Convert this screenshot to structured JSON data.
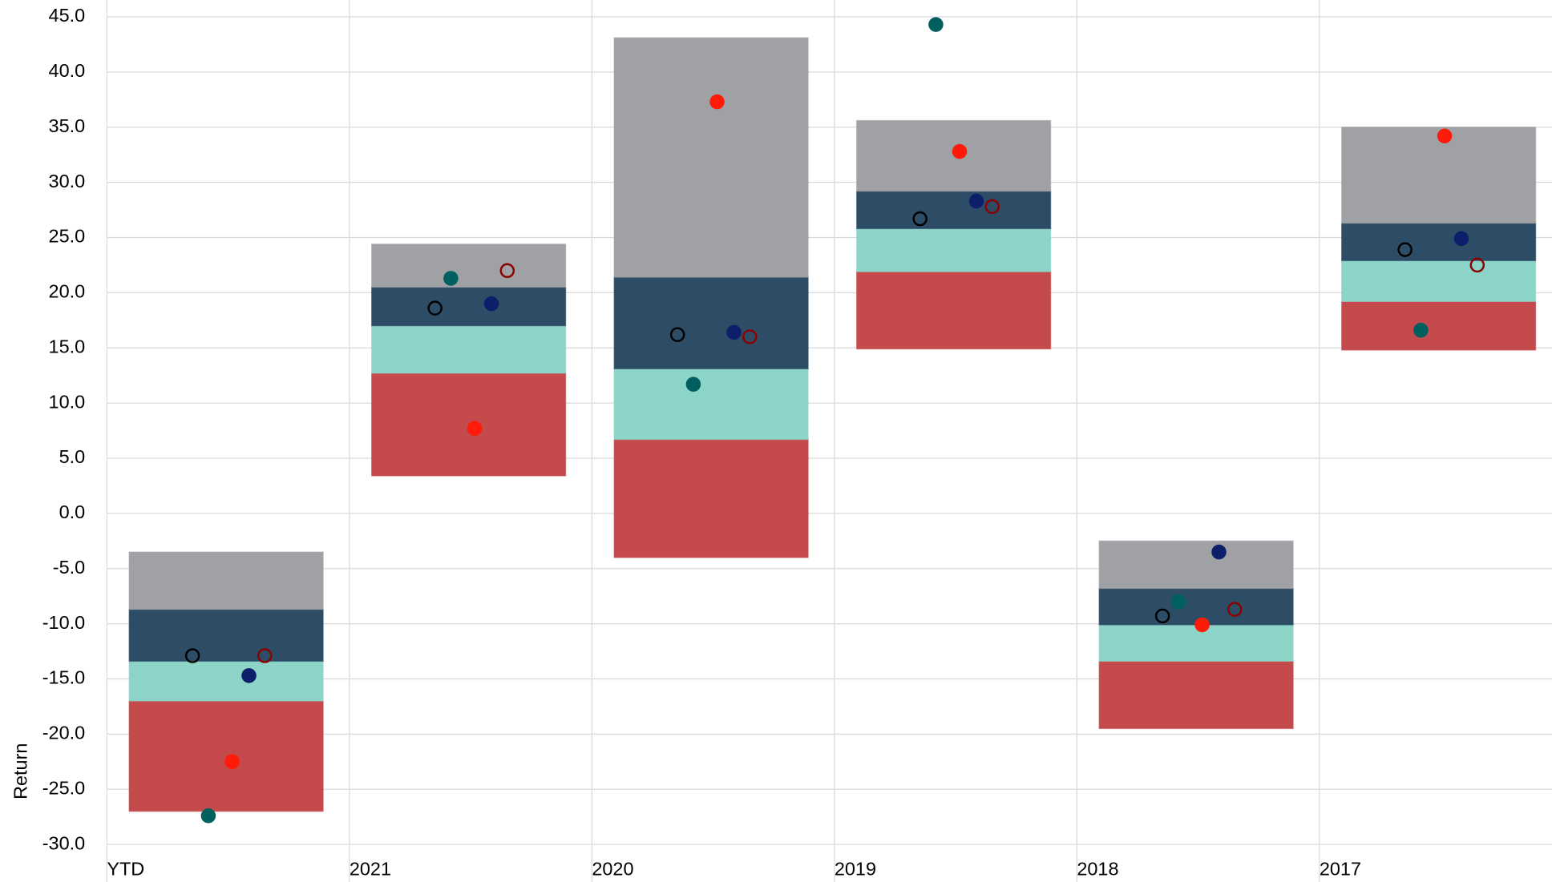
{
  "chart_data": {
    "type": "floating_bar",
    "y_label": "Return",
    "categories": [
      "YTD",
      "2021",
      "2020",
      "2019",
      "2018",
      "2017"
    ],
    "base": [
      -27.0,
      3.4,
      -4.0,
      14.9,
      -19.5,
      14.8
    ],
    "series": [
      {
        "color": "#c44a4c",
        "values": [
          10.0,
          9.3,
          10.7,
          7.0,
          6.1,
          4.4
        ]
      },
      {
        "color": "#8dd4c8",
        "values": [
          3.6,
          4.3,
          6.4,
          3.9,
          3.3,
          3.7
        ]
      },
      {
        "color": "#2d4d66",
        "values": [
          4.7,
          3.5,
          8.3,
          3.4,
          3.3,
          3.4
        ]
      },
      {
        "color": "#a0a1a5",
        "values": [
          5.2,
          3.9,
          21.7,
          6.4,
          4.3,
          8.7
        ]
      }
    ],
    "points": [
      {
        "color": "#000000",
        "filled": false,
        "values": [
          -12.9,
          18.6,
          16.2,
          26.7,
          -9.3,
          23.9
        ]
      },
      {
        "color": "#006060",
        "filled": true,
        "values": [
          -27.4,
          21.3,
          11.7,
          44.3,
          -8.0,
          16.6
        ]
      },
      {
        "color": "#ff1a0a",
        "filled": true,
        "values": [
          -22.5,
          7.7,
          37.3,
          32.8,
          -10.1,
          34.2
        ]
      },
      {
        "color": "#0d1f6b",
        "filled": true,
        "values": [
          -14.7,
          19.0,
          16.4,
          28.3,
          -3.5,
          24.9
        ]
      },
      {
        "color": "#8b0000",
        "filled": false,
        "values": [
          -12.9,
          22.0,
          16.0,
          27.8,
          -8.7,
          22.5
        ]
      }
    ],
    "ylim": [
      -30,
      45
    ],
    "yticks": [
      {
        "value": 45,
        "label": "45.0"
      },
      {
        "value": 40,
        "label": "40.0"
      },
      {
        "value": 35,
        "label": "35.0"
      },
      {
        "value": 30,
        "label": "30.0"
      },
      {
        "value": 25,
        "label": "25.0"
      },
      {
        "value": 20,
        "label": "20.0"
      },
      {
        "value": 15,
        "label": "15.0"
      },
      {
        "value": 10,
        "label": "10.0"
      },
      {
        "value": 5,
        "label": "5.0"
      },
      {
        "value": 0,
        "label": "0.0"
      },
      {
        "value": -5,
        "label": "-5.0"
      },
      {
        "value": -10,
        "label": "-10.0"
      },
      {
        "value": -15,
        "label": "-15.0"
      },
      {
        "value": -20,
        "label": "-20.0"
      },
      {
        "value": -25,
        "label": "-25.0"
      },
      {
        "value": -30,
        "label": "-30.0"
      }
    ],
    "grid": true
  }
}
